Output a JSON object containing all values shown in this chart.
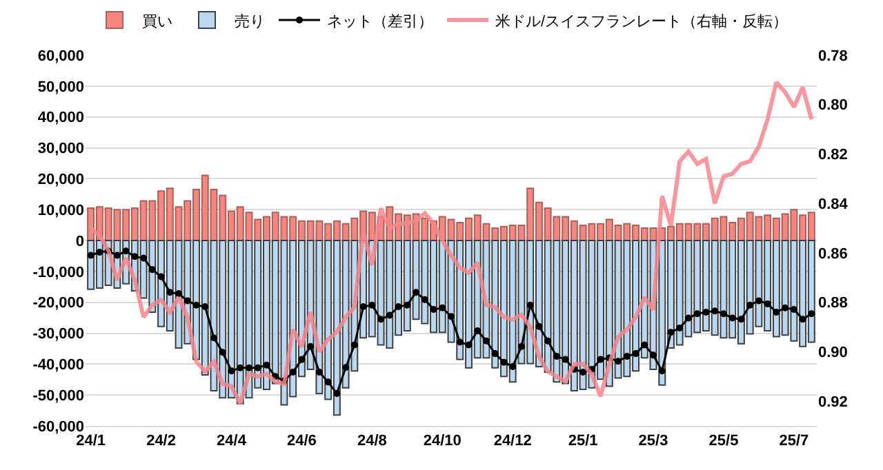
{
  "chart_data": {
    "type": "bar",
    "stacked": true,
    "grid": "y",
    "legend": "top",
    "categories": [
      "24/1",
      null,
      null,
      null,
      null,
      null,
      null,
      null,
      "24/2",
      null,
      null,
      null,
      null,
      null,
      null,
      null,
      "24/4",
      null,
      null,
      null,
      null,
      null,
      null,
      null,
      "24/6",
      null,
      null,
      null,
      null,
      null,
      null,
      null,
      "24/8",
      null,
      null,
      null,
      null,
      null,
      null,
      null,
      "24/10",
      null,
      null,
      null,
      null,
      null,
      null,
      null,
      "24/12",
      null,
      null,
      null,
      null,
      null,
      null,
      null,
      "25/1",
      null,
      null,
      null,
      null,
      null,
      null,
      null,
      "25/3",
      null,
      null,
      null,
      null,
      null,
      null,
      null,
      "25/5",
      null,
      null,
      null,
      null,
      null,
      null,
      null,
      "25/7",
      null,
      null
    ],
    "ylim": [
      -60000,
      60000
    ],
    "yticks": [
      {
        "value": -60000,
        "label": "-60,000"
      },
      {
        "value": -50000,
        "label": "-50,000"
      },
      {
        "value": -40000,
        "label": "-40,000"
      },
      {
        "value": -30000,
        "label": "-30,000"
      },
      {
        "value": -20000,
        "label": "-20,000"
      },
      {
        "value": -10000,
        "label": "-10,000"
      },
      0,
      {
        "value": 10000,
        "label": "10,000"
      },
      {
        "value": 20000,
        "label": "20,000"
      },
      {
        "value": 30000,
        "label": "30,000"
      },
      {
        "value": 40000,
        "label": "40,000"
      },
      {
        "value": 50000,
        "label": "50,000"
      },
      {
        "value": 60000,
        "label": "60,000"
      }
    ],
    "y2lim": [
      0.93,
      0.78
    ],
    "y2ticks": [
      {
        "value": 0.78,
        "label": "0.78"
      },
      {
        "value": 0.8,
        "label": "0.80"
      },
      {
        "value": 0.82,
        "label": "0.82"
      },
      {
        "value": 0.84,
        "label": "0.84"
      },
      {
        "value": 0.86,
        "label": "0.86"
      },
      {
        "value": 0.88,
        "label": "0.88"
      },
      {
        "value": 0.9,
        "label": "0.90"
      },
      {
        "value": 0.92,
        "label": "0.92"
      }
    ],
    "series": [
      {
        "name": "買い",
        "color": "#f4877f",
        "values": [
          10500,
          10900,
          10500,
          10000,
          10000,
          10500,
          12800,
          12800,
          16000,
          16900,
          10900,
          12800,
          16500,
          21100,
          16500,
          14600,
          9500,
          10900,
          9100,
          6800,
          7700,
          9100,
          7700,
          7700,
          6300,
          6300,
          6300,
          5400,
          6300,
          5400,
          7200,
          9500,
          9100,
          7700,
          10900,
          8600,
          8200,
          8600,
          7200,
          6300,
          7700,
          6800,
          5800,
          7200,
          8200,
          5400,
          4000,
          4500,
          4900,
          4900,
          16900,
          12300,
          10500,
          7700,
          7700,
          6300,
          4900,
          5400,
          5400,
          6800,
          4900,
          5400,
          4900,
          4000,
          4000,
          4000,
          4500,
          5400,
          5400,
          5400,
          5400,
          7200,
          7700,
          5800,
          7200,
          9100,
          7700,
          8200,
          7200,
          8600,
          10000,
          8200,
          9100
        ]
      },
      {
        "name": "売り",
        "color": "#bdd7ee",
        "values": [
          -15800,
          -15400,
          -14500,
          -15400,
          -14000,
          -16300,
          -18600,
          -23200,
          -27800,
          -29200,
          -34800,
          -33400,
          -38500,
          -43500,
          -48600,
          -50900,
          -50900,
          -52800,
          -50900,
          -47700,
          -48200,
          -46300,
          -53200,
          -50500,
          -44000,
          -41700,
          -49500,
          -51400,
          -56500,
          -47700,
          -42200,
          -31500,
          -31100,
          -33800,
          -34800,
          -30600,
          -29200,
          -25500,
          -26900,
          -29700,
          -29700,
          -32900,
          -38500,
          -41200,
          -38000,
          -38000,
          -41200,
          -44000,
          -45800,
          -39800,
          -39800,
          -40800,
          -42600,
          -45800,
          -46300,
          -48600,
          -48200,
          -47700,
          -44900,
          -47200,
          -44500,
          -44000,
          -42200,
          -38000,
          -41700,
          -46800,
          -34800,
          -33800,
          -31100,
          -29700,
          -29200,
          -30600,
          -31500,
          -31500,
          -33400,
          -30200,
          -27800,
          -29200,
          -31100,
          -30600,
          -32500,
          -34300,
          -32900
        ]
      },
      {
        "name": "ネット（差引）",
        "type": "line",
        "color": "#000000",
        "marker": "circle",
        "line_style": "solid",
        "values": [
          -4800,
          -3800,
          -3400,
          -4800,
          -3400,
          -5200,
          -5700,
          -9400,
          -11700,
          -16800,
          -17200,
          -19500,
          -20900,
          -21400,
          -31500,
          -36200,
          -42200,
          -41200,
          -41200,
          -41200,
          -40300,
          -44000,
          -45400,
          -42600,
          -38500,
          -34300,
          -42600,
          -45800,
          -49500,
          -41100,
          -33800,
          -21400,
          -20900,
          -25500,
          -24200,
          -21400,
          -20900,
          -16800,
          -19100,
          -22300,
          -21800,
          -24600,
          -32900,
          -33800,
          -29200,
          -32500,
          -36600,
          -39400,
          -40800,
          -34300,
          -20900,
          -27800,
          -32500,
          -37500,
          -38500,
          -41700,
          -42600,
          -41700,
          -38500,
          -38000,
          -39100,
          -37500,
          -36600,
          -33800,
          -37100,
          -42200,
          -29700,
          -28300,
          -25100,
          -23700,
          -23200,
          -22800,
          -23700,
          -25100,
          -25500,
          -20900,
          -19500,
          -20500,
          -23200,
          -21800,
          -22300,
          -25500,
          -23700
        ]
      },
      {
        "name": "米ドル/スイスフランレート（右軸・反転）",
        "type": "line",
        "axis": "y2",
        "color": "#f4868c",
        "marker": "none",
        "line_style": "solid",
        "values": [
          0.85,
          0.853,
          0.859,
          0.871,
          0.862,
          0.871,
          0.886,
          0.881,
          0.879,
          0.884,
          0.878,
          0.886,
          0.904,
          0.908,
          0.904,
          0.913,
          0.914,
          0.921,
          0.909,
          0.91,
          0.909,
          0.912,
          0.913,
          0.891,
          0.898,
          0.884,
          0.9,
          0.895,
          0.892,
          0.886,
          0.882,
          0.851,
          0.865,
          0.842,
          0.85,
          0.848,
          0.848,
          0.847,
          0.844,
          0.848,
          0.855,
          0.861,
          0.866,
          0.868,
          0.864,
          0.881,
          0.882,
          0.886,
          0.887,
          0.885,
          0.89,
          0.902,
          0.908,
          0.91,
          0.912,
          0.905,
          0.905,
          0.909,
          0.918,
          0.905,
          0.894,
          0.891,
          0.886,
          0.878,
          0.883,
          0.837,
          0.849,
          0.823,
          0.819,
          0.824,
          0.822,
          0.84,
          0.829,
          0.828,
          0.824,
          0.823,
          0.817,
          0.806,
          0.791,
          0.795,
          0.801,
          0.793,
          0.806
        ]
      }
    ]
  }
}
